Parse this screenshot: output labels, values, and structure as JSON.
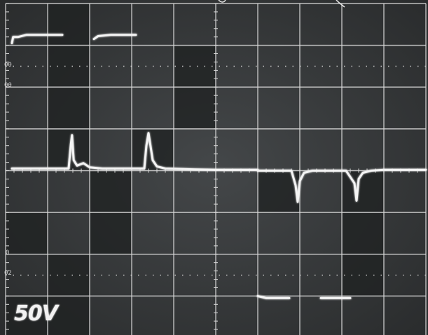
{
  "scale": {
    "volts_per_div": "50V"
  },
  "tick_labels": [
    {
      "text": "00"
    },
    {
      "text": "00"
    },
    {
      "text": "0"
    },
    {
      "text": "02"
    }
  ],
  "chart_data": {
    "type": "line",
    "title": "",
    "xlabel": "",
    "ylabel": "",
    "x_divisions": 10,
    "y_divisions": 8,
    "volts_per_div": 50,
    "xlim": [
      0,
      10
    ],
    "ylim": [
      -4,
      4
    ],
    "grid": true,
    "colors": {
      "trace": "#f4f4f4",
      "grid": "#d8d8d8",
      "screen_light": "#3a3d3f",
      "screen_dark": "#1f2122"
    },
    "series": [
      {
        "x": [
          0.15,
          0.18,
          0.3,
          0.5,
          0.7,
          1.0,
          1.35
        ],
        "y": [
          3.05,
          3.2,
          3.2,
          3.25,
          3.25,
          3.25,
          3.25
        ]
      },
      {
        "x": [
          2.1,
          2.2,
          2.5,
          2.8,
          3.1
        ],
        "y": [
          3.15,
          3.22,
          3.25,
          3.25,
          3.25
        ]
      },
      {
        "x": [
          0.15,
          0.3,
          0.95,
          1.5,
          1.55,
          1.58,
          1.62,
          1.7,
          1.85,
          2.0,
          2.3,
          3.0,
          3.3,
          3.35,
          3.4,
          3.5,
          3.6,
          3.8,
          4.5,
          5.0,
          5.5,
          6.0
        ],
        "y": [
          0.05,
          0.05,
          0.05,
          0.05,
          0.6,
          0.85,
          0.25,
          0.12,
          0.18,
          0.08,
          0.05,
          0.05,
          0.05,
          0.6,
          0.9,
          0.25,
          0.1,
          0.05,
          0.03,
          0.02,
          0.02,
          0.02
        ]
      },
      {
        "x": [
          6.0,
          6.6,
          6.8,
          6.9,
          6.95,
          7.0,
          7.1,
          7.3,
          7.6,
          8.1,
          8.3,
          8.35,
          8.4,
          8.5,
          8.7,
          9.0,
          10.0
        ],
        "y": [
          0.0,
          0.0,
          0.0,
          -0.35,
          -0.75,
          -0.25,
          -0.05,
          0.0,
          0.0,
          0.0,
          -0.3,
          -0.72,
          -0.2,
          -0.05,
          0.0,
          0.02,
          0.02
        ]
      },
      {
        "x": [
          6.0,
          6.2,
          6.5,
          6.75
        ],
        "y": [
          -3.0,
          -3.05,
          -3.05,
          -3.05
        ]
      },
      {
        "x": [
          7.5,
          7.7,
          8.0,
          8.2
        ],
        "y": [
          -3.05,
          -3.05,
          -3.05,
          -3.05
        ]
      }
    ]
  }
}
